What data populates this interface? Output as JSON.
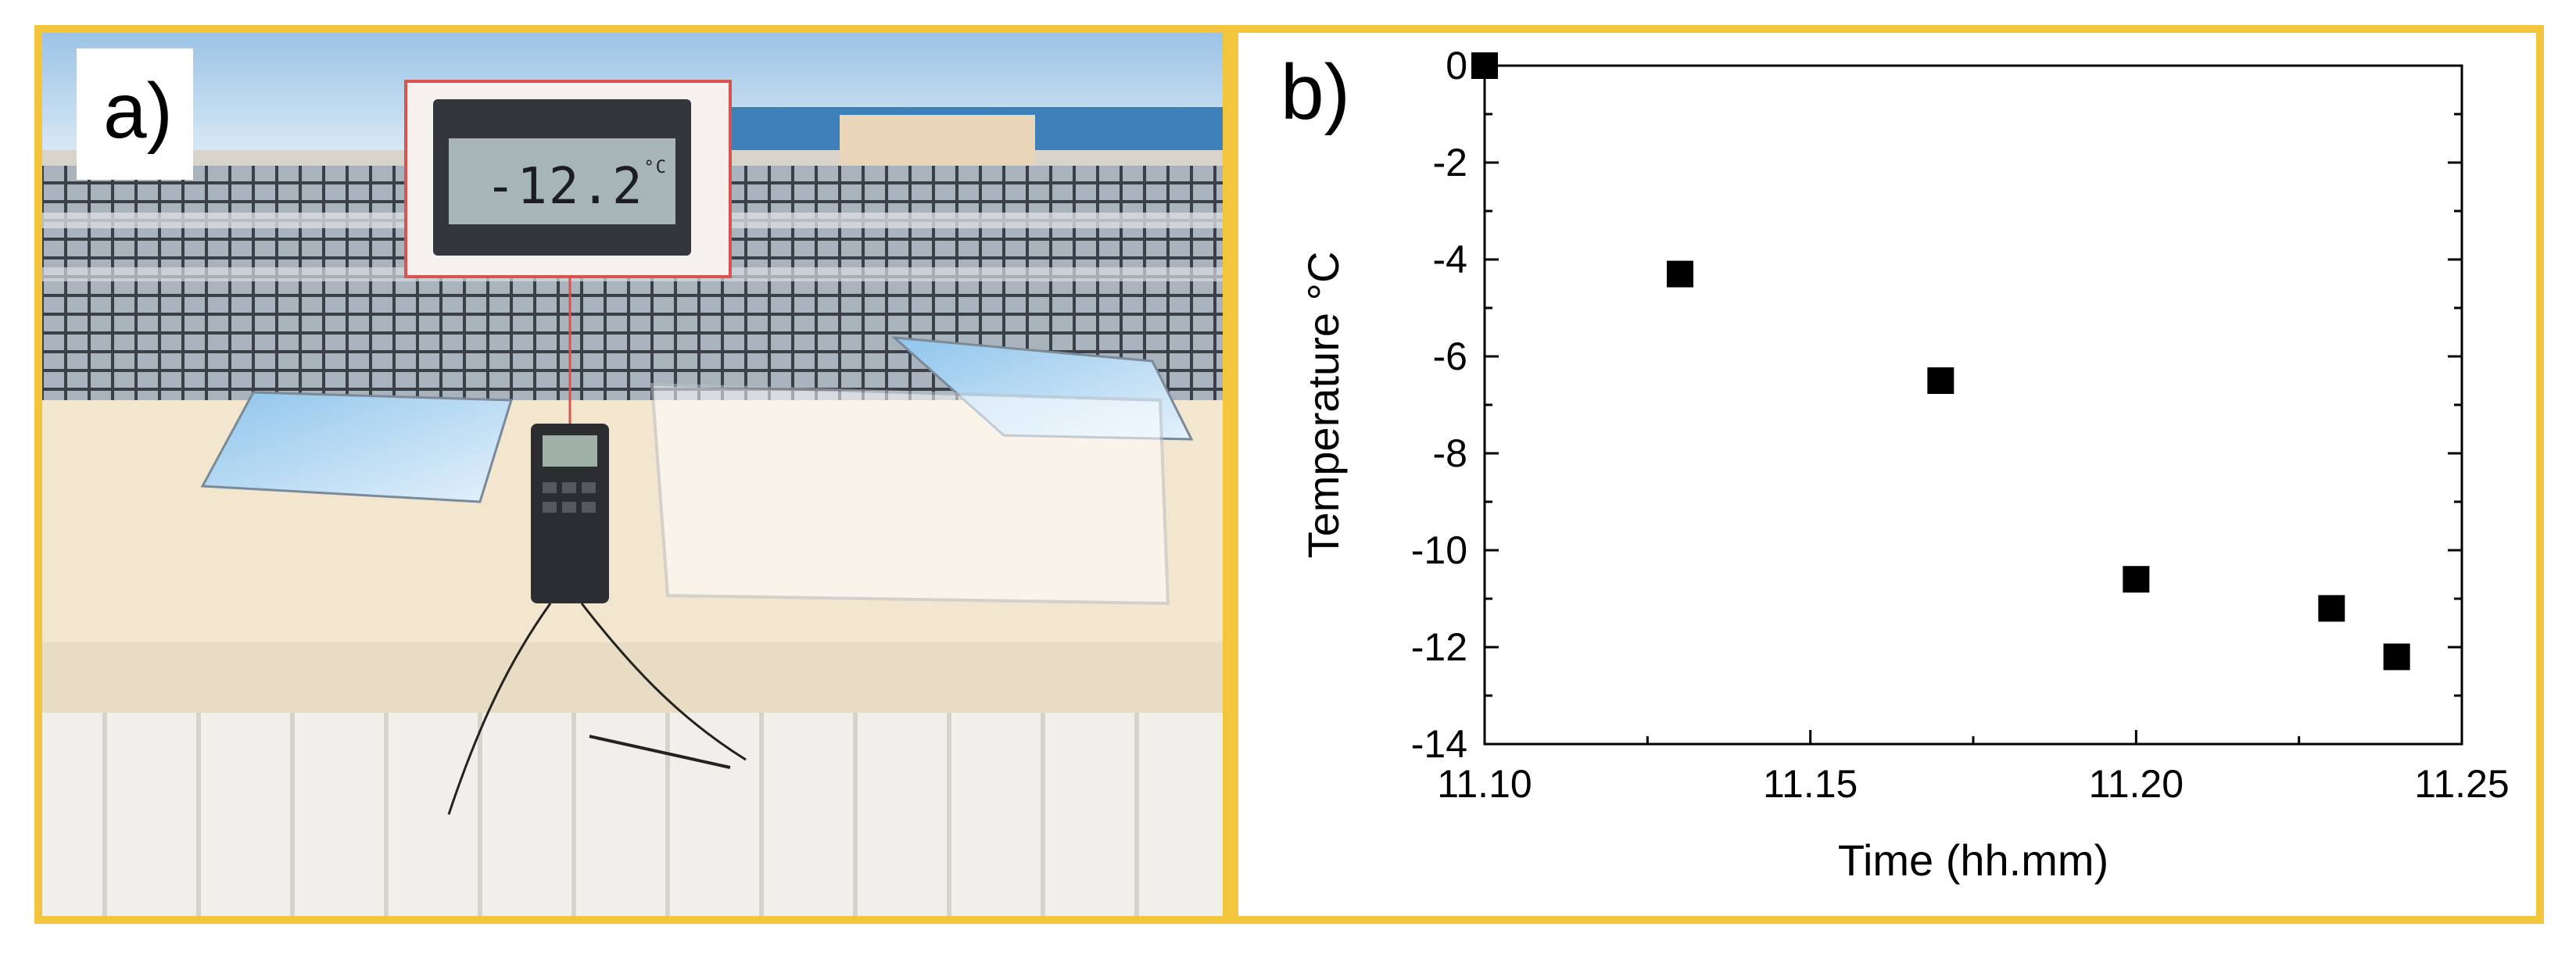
{
  "panels": {
    "a": {
      "label": "a)"
    },
    "b": {
      "label": "b)"
    }
  },
  "photo": {
    "meter_display": "-12.2",
    "meter_unit": "°C"
  },
  "colors": {
    "frame": "#F2C53D",
    "marker": "#000000",
    "inset_border": "#d9534f"
  },
  "chart_data": {
    "type": "scatter",
    "title": "",
    "xlabel": "Time (hh.mm)",
    "ylabel": "Temperature °C",
    "xlim": [
      11.1,
      11.25
    ],
    "ylim": [
      -14,
      0
    ],
    "x_ticks": [
      "11.10",
      "11.15",
      "11.20",
      "11.25"
    ],
    "y_ticks": [
      "0",
      "-2",
      "-4",
      "-6",
      "-8",
      "-10",
      "-12",
      "-14"
    ],
    "x_tick_values": [
      11.1,
      11.15,
      11.2,
      11.25
    ],
    "y_tick_values": [
      0,
      -2,
      -4,
      -6,
      -8,
      -10,
      -12,
      -14
    ],
    "grid": false,
    "marker": "square",
    "points": [
      {
        "x": 11.1,
        "y": 0
      },
      {
        "x": 11.13,
        "y": -4.3
      },
      {
        "x": 11.17,
        "y": -6.5
      },
      {
        "x": 11.2,
        "y": -10.6
      },
      {
        "x": 11.23,
        "y": -11.2
      },
      {
        "x": 11.24,
        "y": -12.2
      }
    ]
  }
}
